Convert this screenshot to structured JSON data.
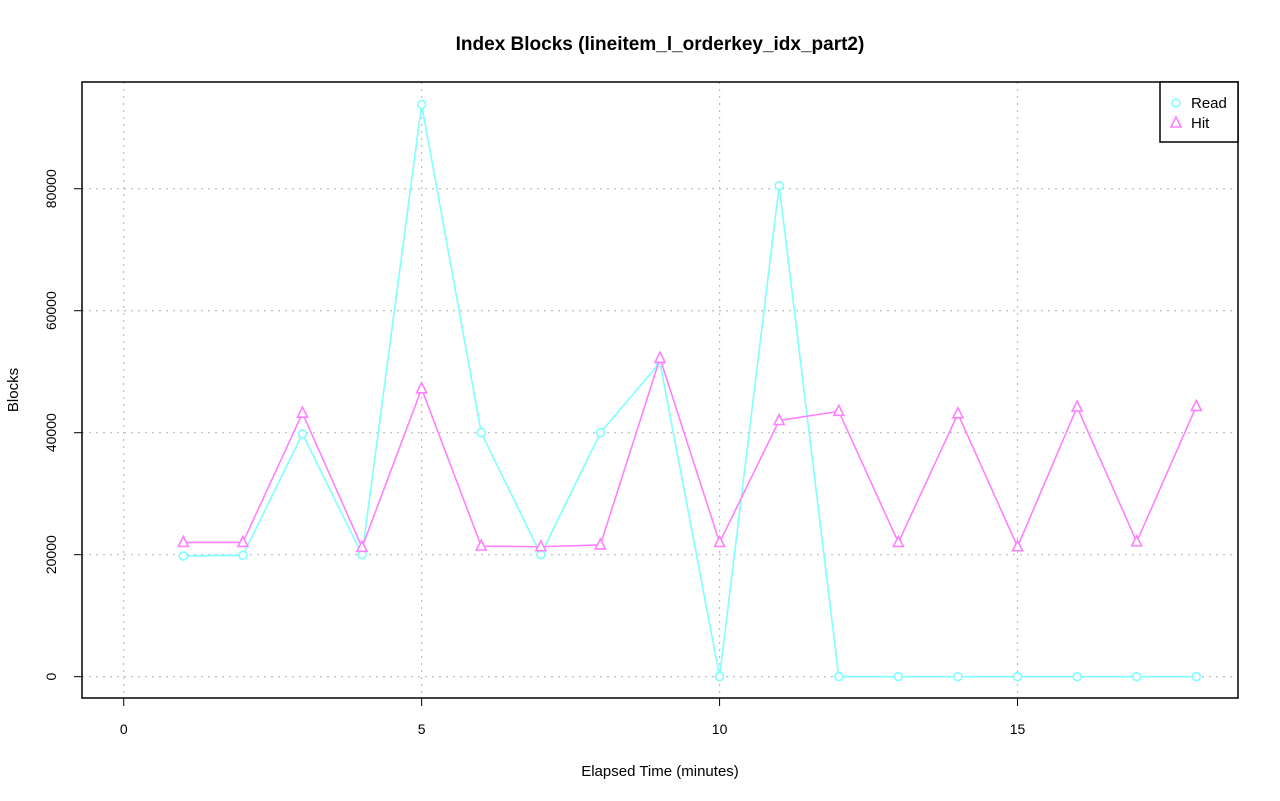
{
  "chart_data": {
    "type": "line",
    "title": "Index Blocks (lineitem_l_orderkey_idx_part2)",
    "xlabel": "Elapsed Time (minutes)",
    "ylabel": "Blocks",
    "xlim": [
      -0.7,
      18.7
    ],
    "ylim": [
      -3500,
      97500
    ],
    "x_ticks": [
      0,
      5,
      10,
      15
    ],
    "y_ticks": [
      0,
      20000,
      40000,
      60000,
      80000
    ],
    "grid": true,
    "legend": "top-right",
    "series": [
      {
        "name": "Read",
        "color": "#7fffff",
        "marker": "circle",
        "x": [
          1,
          2,
          3,
          4,
          5,
          6,
          7,
          8,
          9,
          10,
          11,
          12,
          13,
          14,
          15,
          16,
          17,
          18
        ],
        "values": [
          19800,
          19900,
          39800,
          20000,
          93800,
          40000,
          20000,
          40000,
          51500,
          0,
          80500,
          0,
          0,
          0,
          0,
          0,
          0,
          0
        ]
      },
      {
        "name": "Hit",
        "color": "#ff80ff",
        "marker": "triangle",
        "x": [
          1,
          2,
          3,
          4,
          5,
          6,
          7,
          8,
          9,
          10,
          11,
          12,
          13,
          14,
          15,
          16,
          17,
          18
        ],
        "values": [
          22000,
          22000,
          43200,
          21200,
          47200,
          21400,
          21300,
          21600,
          52200,
          22000,
          42000,
          43500,
          22000,
          43100,
          21300,
          44200,
          22100,
          44300
        ]
      }
    ]
  }
}
